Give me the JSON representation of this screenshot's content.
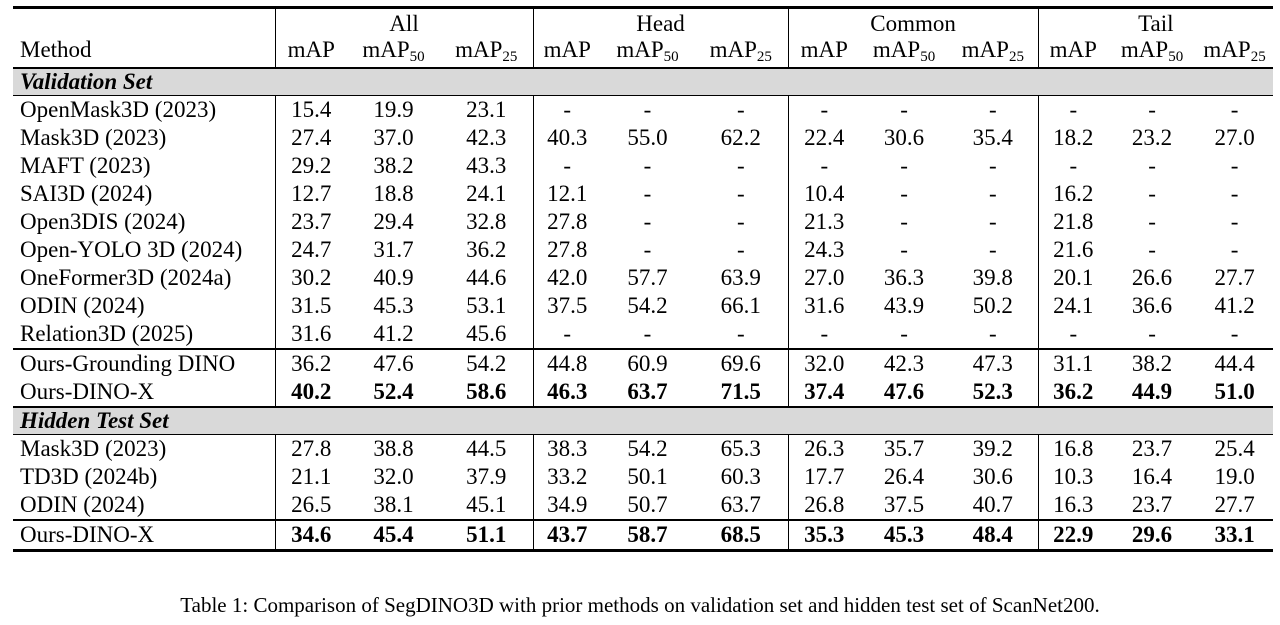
{
  "groups": [
    "All",
    "Head",
    "Common",
    "Tail"
  ],
  "method_header": "Method",
  "metric_base": "mAP",
  "metric_sub50": "50",
  "metric_sub25": "25",
  "sections": [
    {
      "title": "Validation Set",
      "blocks": [
        [
          {
            "method": "OpenMask3D (2023)",
            "vals": [
              "15.4",
              "19.9",
              "23.1",
              "-",
              "-",
              "-",
              "-",
              "-",
              "-",
              "-",
              "-",
              "-"
            ],
            "bold": false
          },
          {
            "method": "Mask3D (2023)",
            "vals": [
              "27.4",
              "37.0",
              "42.3",
              "40.3",
              "55.0",
              "62.2",
              "22.4",
              "30.6",
              "35.4",
              "18.2",
              "23.2",
              "27.0"
            ],
            "bold": false
          },
          {
            "method": "MAFT (2023)",
            "vals": [
              "29.2",
              "38.2",
              "43.3",
              "-",
              "-",
              "-",
              "-",
              "-",
              "-",
              "-",
              "-",
              "-"
            ],
            "bold": false
          },
          {
            "method": "SAI3D (2024)",
            "vals": [
              "12.7",
              "18.8",
              "24.1",
              "12.1",
              "-",
              "-",
              "10.4",
              "-",
              "-",
              "16.2",
              "-",
              "-"
            ],
            "bold": false
          },
          {
            "method": "Open3DIS (2024)",
            "vals": [
              "23.7",
              "29.4",
              "32.8",
              "27.8",
              "-",
              "-",
              "21.3",
              "-",
              "-",
              "21.8",
              "-",
              "-"
            ],
            "bold": false
          },
          {
            "method": "Open-YOLO 3D (2024)",
            "vals": [
              "24.7",
              "31.7",
              "36.2",
              "27.8",
              "-",
              "-",
              "24.3",
              "-",
              "-",
              "21.6",
              "-",
              "-"
            ],
            "bold": false
          },
          {
            "method": "OneFormer3D (2024a)",
            "vals": [
              "30.2",
              "40.9",
              "44.6",
              "42.0",
              "57.7",
              "63.9",
              "27.0",
              "36.3",
              "39.8",
              "20.1",
              "26.6",
              "27.7"
            ],
            "bold": false
          },
          {
            "method": "ODIN (2024)",
            "vals": [
              "31.5",
              "45.3",
              "53.1",
              "37.5",
              "54.2",
              "66.1",
              "31.6",
              "43.9",
              "50.2",
              "24.1",
              "36.6",
              "41.2"
            ],
            "bold": false
          },
          {
            "method": "Relation3D (2025)",
            "vals": [
              "31.6",
              "41.2",
              "45.6",
              "-",
              "-",
              "-",
              "-",
              "-",
              "-",
              "-",
              "-",
              "-"
            ],
            "bold": false
          }
        ],
        [
          {
            "method": "Ours-Grounding DINO",
            "vals": [
              "36.2",
              "47.6",
              "54.2",
              "44.8",
              "60.9",
              "69.6",
              "32.0",
              "42.3",
              "47.3",
              "31.1",
              "38.2",
              "44.4"
            ],
            "bold": false
          },
          {
            "method": "Ours-DINO-X",
            "vals": [
              "40.2",
              "52.4",
              "58.6",
              "46.3",
              "63.7",
              "71.5",
              "37.4",
              "47.6",
              "52.3",
              "36.2",
              "44.9",
              "51.0"
            ],
            "bold": true
          }
        ]
      ]
    },
    {
      "title": "Hidden Test Set",
      "blocks": [
        [
          {
            "method": "Mask3D (2023)",
            "vals": [
              "27.8",
              "38.8",
              "44.5",
              "38.3",
              "54.2",
              "65.3",
              "26.3",
              "35.7",
              "39.2",
              "16.8",
              "23.7",
              "25.4"
            ],
            "bold": false
          },
          {
            "method": "TD3D (2024b)",
            "vals": [
              "21.1",
              "32.0",
              "37.9",
              "33.2",
              "50.1",
              "60.3",
              "17.7",
              "26.4",
              "30.6",
              "10.3",
              "16.4",
              "19.0"
            ],
            "bold": false
          },
          {
            "method": "ODIN (2024)",
            "vals": [
              "26.5",
              "38.1",
              "45.1",
              "34.9",
              "50.7",
              "63.7",
              "26.8",
              "37.5",
              "40.7",
              "16.3",
              "23.7",
              "27.7"
            ],
            "bold": false
          }
        ],
        [
          {
            "method": "Ours-DINO-X",
            "vals": [
              "34.6",
              "45.4",
              "51.1",
              "43.7",
              "58.7",
              "68.5",
              "35.3",
              "45.3",
              "48.4",
              "22.9",
              "29.6",
              "33.1"
            ],
            "bold": true
          }
        ]
      ]
    }
  ],
  "caption": "Table 1: Comparison of SegDINO3D with prior methods on validation set and hidden test set of ScanNet200."
}
